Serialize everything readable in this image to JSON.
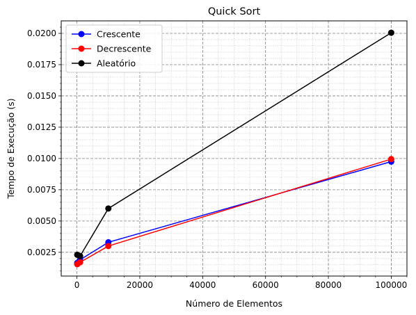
{
  "chart_data": {
    "type": "line",
    "title": "Quick Sort",
    "xlabel": "Número de Elementos",
    "ylabel": "Tempo de Execução (s)",
    "xlim": [
      -5000,
      105000
    ],
    "ylim": [
      0.0006,
      0.021
    ],
    "xticks": [
      0,
      20000,
      40000,
      60000,
      80000,
      100000
    ],
    "xtick_labels": [
      "0",
      "20000",
      "40000",
      "60000",
      "80000",
      "100000"
    ],
    "yticks": [
      0.0025,
      0.005,
      0.0075,
      0.01,
      0.0125,
      0.015,
      0.0175,
      0.02
    ],
    "ytick_labels": [
      "0.0025",
      "0.0050",
      "0.0075",
      "0.0100",
      "0.0125",
      "0.0150",
      "0.0175",
      "0.0200"
    ],
    "grid": true,
    "minor_grid": true,
    "legend_position": "top-left",
    "x": [
      100,
      1000,
      10000,
      100000
    ],
    "series": [
      {
        "name": "Crescente",
        "color": "#0000ff",
        "values": [
          0.00165,
          0.0019,
          0.0033,
          0.00975
        ]
      },
      {
        "name": "Decrescente",
        "color": "#ff0000",
        "values": [
          0.00155,
          0.0017,
          0.003,
          0.00995
        ]
      },
      {
        "name": "Aleatório",
        "color": "#000000",
        "values": [
          0.0023,
          0.0022,
          0.006,
          0.02005
        ]
      }
    ]
  }
}
